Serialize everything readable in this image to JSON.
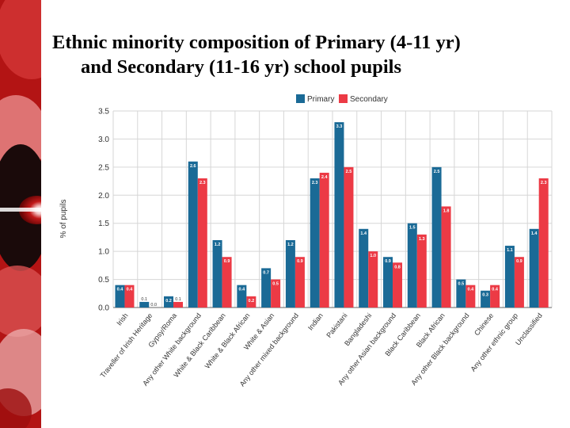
{
  "slide": {
    "title_line1": "Ethnic minority composition of Primary (4-11 yr)",
    "title_line2": "and Secondary (11-16 yr) school pupils"
  },
  "colors": {
    "primary": "#1a6a96",
    "secondary": "#ec3a45",
    "grid": "#d6d6d6",
    "axis": "#666666"
  },
  "chart_data": {
    "type": "bar",
    "ylabel": "% of pupils",
    "ylim": [
      0,
      3.5
    ],
    "yticks": [
      0.0,
      0.5,
      1.0,
      1.5,
      2.0,
      2.5,
      3.0,
      3.5
    ],
    "grid": true,
    "legend_position": "top-center",
    "categories": [
      "Irish",
      "Traveller of Irish Heritage",
      "Gypsy/Roma",
      "Any other White background",
      "White & Black Caribbean",
      "White & Black African",
      "White & Asian",
      "Any other mixed background",
      "Indian",
      "Pakistani",
      "Bangladeshi",
      "Any other Asian background",
      "Black Caribbean",
      "Black African",
      "Any other Black background",
      "Chinese",
      "Any other ethnic group",
      "Unclassified"
    ],
    "series": [
      {
        "name": "Primary",
        "values": [
          0.4,
          0.1,
          0.2,
          2.6,
          1.2,
          0.4,
          0.7,
          1.2,
          2.3,
          3.3,
          1.4,
          0.9,
          1.5,
          2.5,
          0.5,
          0.3,
          1.1,
          1.4
        ]
      },
      {
        "name": "Secondary",
        "values": [
          0.4,
          0.0,
          0.1,
          2.3,
          0.9,
          0.2,
          0.5,
          0.9,
          2.4,
          2.5,
          1.0,
          0.8,
          1.3,
          1.8,
          0.4,
          0.4,
          0.9,
          2.3
        ]
      }
    ]
  }
}
